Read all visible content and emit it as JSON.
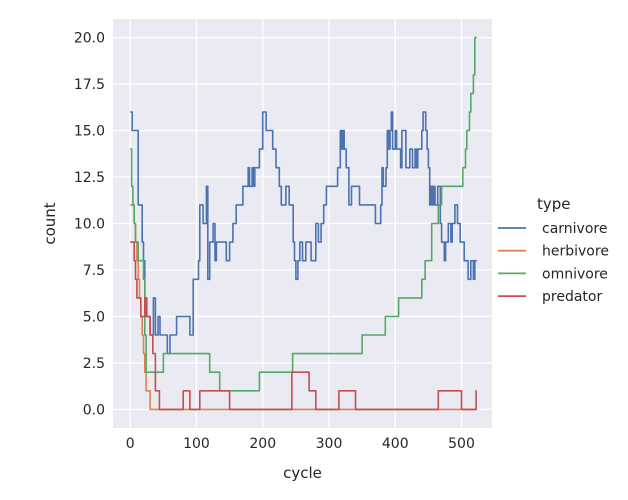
{
  "chart_data": {
    "type": "line",
    "xlabel": "cycle",
    "ylabel": "count",
    "xlim": [
      -26,
      546
    ],
    "ylim": [
      -1.0,
      21.0
    ],
    "xticks": [
      0,
      100,
      200,
      300,
      400,
      500
    ],
    "yticks": [
      0.0,
      2.5,
      5.0,
      7.5,
      10.0,
      12.5,
      15.0,
      17.5,
      20.0
    ],
    "xtick_labels": [
      "0",
      "100",
      "200",
      "300",
      "400",
      "500"
    ],
    "ytick_labels": [
      "0.0",
      "2.5",
      "5.0",
      "7.5",
      "10.0",
      "12.5",
      "15.0",
      "17.5",
      "20.0"
    ],
    "grid": true,
    "legend": {
      "title": "type",
      "position": "right"
    },
    "series": [
      {
        "name": "carnivore",
        "color": "#4c72b0",
        "x": [
          0,
          3,
          4,
          12,
          15,
          18,
          20,
          22,
          25,
          28,
          30,
          33,
          35,
          38,
          40,
          42,
          45,
          48,
          52,
          56,
          60,
          65,
          70,
          75,
          80,
          85,
          90,
          92,
          95,
          98,
          100,
          103,
          105,
          108,
          110,
          113,
          115,
          117,
          120,
          123,
          125,
          128,
          130,
          135,
          140,
          145,
          150,
          155,
          160,
          165,
          170,
          175,
          178,
          180,
          182,
          184,
          186,
          188,
          190,
          195,
          200,
          205,
          210,
          215,
          218,
          220,
          222,
          225,
          228,
          230,
          233,
          235,
          238,
          240,
          243,
          246,
          248,
          250,
          253,
          256,
          258,
          260,
          263,
          265,
          268,
          270,
          273,
          276,
          280,
          284,
          288,
          292,
          296,
          300,
          305,
          310,
          313,
          315,
          317,
          319,
          321,
          323,
          326,
          330,
          334,
          338,
          342,
          346,
          350,
          355,
          360,
          365,
          370,
          375,
          378,
          380,
          382,
          384,
          386,
          388,
          390,
          392,
          394,
          396,
          398,
          400,
          402,
          404,
          406,
          408,
          410,
          412,
          414,
          416,
          418,
          420,
          422,
          424,
          426,
          428,
          430,
          432,
          434,
          436,
          438,
          440,
          442,
          444,
          446,
          448,
          450,
          452,
          454,
          456,
          458,
          460,
          462,
          464,
          466,
          468,
          470,
          472,
          474,
          476,
          478,
          480,
          482,
          484,
          486,
          488,
          490,
          492,
          494,
          496,
          498,
          500,
          502,
          504,
          506,
          508,
          510,
          512,
          514,
          516,
          518,
          520,
          522,
          523
        ],
        "values": [
          16,
          15,
          15,
          11,
          11,
          9,
          8,
          6,
          5,
          5,
          4,
          4,
          6,
          4,
          4,
          5,
          4,
          4,
          4,
          3,
          4,
          4,
          5,
          5,
          5,
          5,
          4,
          4,
          7,
          7,
          7,
          8,
          11,
          11,
          10,
          10,
          12,
          7,
          9,
          9,
          10,
          8,
          9,
          9,
          9,
          8,
          9,
          10,
          11,
          11,
          12,
          12,
          13,
          12,
          12,
          13,
          12,
          13,
          13,
          14,
          16,
          15,
          15,
          14,
          14,
          13,
          13,
          12,
          11,
          11,
          11,
          12,
          12,
          11,
          11,
          9,
          8,
          7,
          8,
          9,
          9,
          8,
          8,
          9,
          9,
          9,
          8,
          8,
          10,
          9,
          10,
          11,
          12,
          12,
          12,
          12,
          13,
          13,
          15,
          14,
          15,
          14,
          13,
          11,
          12,
          12,
          12,
          11,
          11,
          11,
          11,
          11,
          10,
          10,
          11,
          13,
          12,
          12,
          13,
          15,
          14,
          15,
          16,
          14,
          14,
          15,
          14,
          14,
          14,
          13,
          15,
          15,
          15,
          13,
          13,
          13,
          14,
          14,
          13,
          13,
          14,
          13,
          14,
          14,
          14,
          15,
          16,
          16,
          15,
          14,
          13,
          11,
          12,
          11,
          12,
          11,
          11,
          12,
          12,
          10,
          9,
          9,
          8,
          9,
          9,
          10,
          10,
          9,
          10,
          10,
          11,
          11,
          10,
          10,
          9,
          9,
          9,
          8,
          8,
          8,
          7,
          7,
          8,
          8,
          7,
          8,
          8,
          8
        ],
        "_note": "approximate"
      },
      {
        "name": "herbivore",
        "color": "#dd8452",
        "x": [
          0,
          4,
          6,
          8,
          10,
          12,
          14,
          16,
          18,
          20,
          22,
          24,
          26,
          28,
          30,
          32,
          35,
          40,
          60,
          100,
          200,
          300,
          400,
          500,
          523
        ],
        "values": [
          11,
          11,
          10,
          9,
          8,
          7,
          6,
          5,
          4,
          3,
          2,
          1,
          1,
          1,
          0,
          0,
          0,
          0,
          0,
          0,
          0,
          0,
          0,
          0,
          0
        ]
      },
      {
        "name": "omnivore",
        "color": "#55a868",
        "x": [
          0,
          2,
          4,
          6,
          8,
          10,
          12,
          14,
          16,
          18,
          20,
          22,
          24,
          26,
          30,
          35,
          40,
          45,
          50,
          60,
          70,
          80,
          90,
          100,
          110,
          115,
          120,
          125,
          130,
          135,
          140,
          145,
          150,
          160,
          170,
          180,
          190,
          195,
          200,
          210,
          220,
          230,
          240,
          245,
          250,
          260,
          270,
          280,
          290,
          300,
          320,
          330,
          340,
          350,
          360,
          370,
          380,
          385,
          390,
          395,
          400,
          405,
          410,
          420,
          430,
          435,
          440,
          442,
          445,
          450,
          455,
          460,
          465,
          470,
          475,
          480,
          490,
          500,
          502,
          504,
          506,
          508,
          510,
          512,
          514,
          516,
          518,
          520,
          522,
          523
        ],
        "values": [
          14,
          12,
          11,
          10,
          9,
          9,
          8,
          8,
          8,
          8,
          7,
          4,
          2,
          2,
          2,
          2,
          2,
          2,
          3,
          3,
          3,
          3,
          3,
          3,
          3,
          3,
          2,
          2,
          2,
          1,
          1,
          1,
          1,
          1,
          1,
          1,
          1,
          2,
          2,
          2,
          2,
          2,
          2,
          3,
          3,
          3,
          3,
          3,
          3,
          3,
          3,
          3,
          3,
          4,
          4,
          4,
          4,
          5,
          5,
          5,
          5,
          6,
          6,
          6,
          6,
          6,
          7,
          7,
          8,
          8,
          10,
          10,
          11,
          12,
          12,
          12,
          12,
          12,
          13,
          13,
          14,
          15,
          15,
          16,
          17,
          17,
          18,
          20,
          20,
          20
        ]
      },
      {
        "name": "predator",
        "color": "#c44e52",
        "x": [
          0,
          4,
          6,
          8,
          10,
          12,
          14,
          16,
          18,
          20,
          22,
          24,
          26,
          28,
          30,
          32,
          34,
          36,
          38,
          40,
          44,
          50,
          60,
          70,
          78,
          80,
          85,
          88,
          90,
          95,
          100,
          105,
          110,
          115,
          120,
          125,
          130,
          135,
          140,
          145,
          150,
          155,
          160,
          170,
          180,
          190,
          200,
          210,
          220,
          230,
          240,
          244,
          248,
          250,
          255,
          260,
          265,
          270,
          275,
          280,
          290,
          300,
          310,
          315,
          320,
          325,
          330,
          335,
          340,
          350,
          360,
          370,
          380,
          390,
          400,
          410,
          420,
          430,
          440,
          445,
          450,
          455,
          460,
          465,
          470,
          475,
          480,
          485,
          490,
          500,
          510,
          515,
          520,
          522,
          523
        ],
        "values": [
          9,
          9,
          8,
          7,
          6,
          6,
          6,
          5,
          5,
          5,
          6,
          5,
          5,
          5,
          4,
          4,
          3,
          3,
          1,
          1,
          0,
          0,
          0,
          0,
          0,
          1,
          1,
          1,
          0,
          0,
          0,
          1,
          1,
          1,
          1,
          1,
          1,
          1,
          1,
          1,
          0,
          0,
          0,
          0,
          0,
          0,
          0,
          0,
          0,
          0,
          0,
          2,
          2,
          2,
          2,
          2,
          2,
          1,
          1,
          0,
          0,
          0,
          0,
          1,
          1,
          1,
          1,
          1,
          0,
          0,
          0,
          0,
          0,
          0,
          0,
          0,
          0,
          0,
          0,
          0,
          0,
          0,
          0,
          1,
          1,
          1,
          1,
          1,
          1,
          0,
          0,
          0,
          0,
          1,
          1
        ]
      }
    ]
  }
}
